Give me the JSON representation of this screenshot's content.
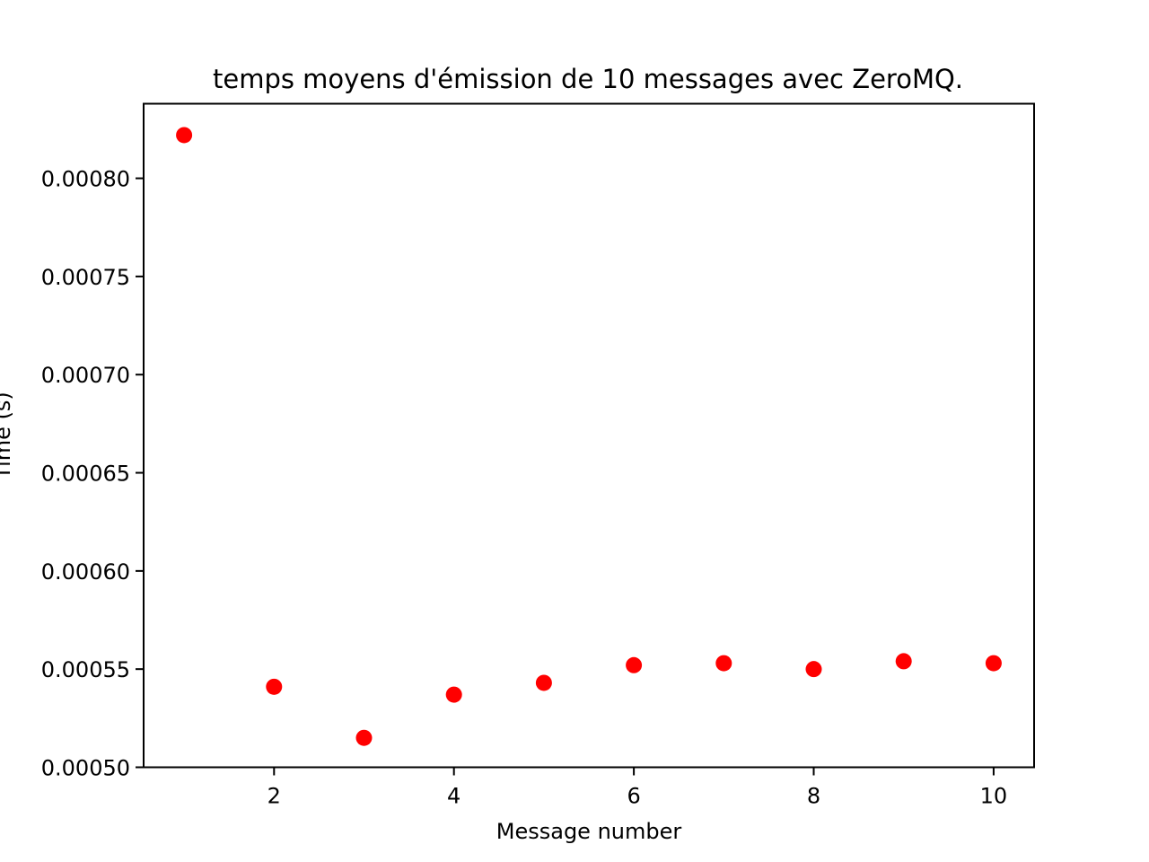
{
  "chart_data": {
    "type": "scatter",
    "title": "temps moyens d'émission de 10 messages avec ZeroMQ.",
    "xlabel": "Message number",
    "ylabel": "Time (s)",
    "xlim": [
      0.55,
      10.45
    ],
    "ylim": [
      0.0005,
      0.000838
    ],
    "x_ticks": [
      2,
      4,
      6,
      8,
      10
    ],
    "x_tick_labels": [
      "2",
      "4",
      "6",
      "8",
      "10"
    ],
    "y_ticks": [
      0.0005,
      0.00055,
      0.0006,
      0.00065,
      0.0007,
      0.00075,
      0.0008
    ],
    "y_tick_labels": [
      "0.00050",
      "0.00055",
      "0.00060",
      "0.00065",
      "0.00070",
      "0.00075",
      "0.00080"
    ],
    "grid": false,
    "marker_color": "#ff0000",
    "series": [
      {
        "x": [
          1,
          2,
          3,
          4,
          5,
          6,
          7,
          8,
          9,
          10
        ],
        "y": [
          0.000822,
          0.000541,
          0.000515,
          0.000537,
          0.000543,
          0.000552,
          0.000553,
          0.00055,
          0.000554,
          0.000553
        ]
      }
    ]
  }
}
